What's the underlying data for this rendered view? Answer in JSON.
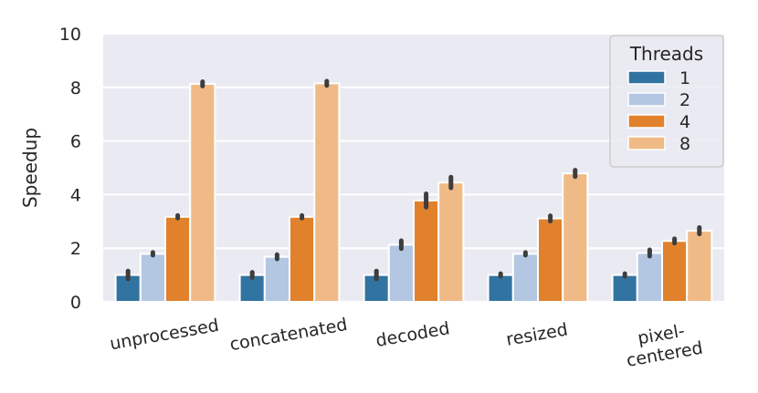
{
  "chart_data": {
    "type": "bar",
    "title": "",
    "xlabel": "",
    "ylabel": "Speedup",
    "ylim": [
      0,
      10
    ],
    "yticks": [
      "0",
      "2",
      "4",
      "6",
      "8",
      "10"
    ],
    "grid": true,
    "categories": [
      "unprocessed",
      "concatenated",
      "decoded",
      "resized",
      "pixel-\ncentered"
    ],
    "legend": {
      "title": "Threads",
      "placement": "top-right"
    },
    "series": [
      {
        "name": "1",
        "color": "#3274a1",
        "values": [
          1.0,
          1.0,
          1.0,
          1.0,
          1.0
        ],
        "err": [
          0.15,
          0.1,
          0.15,
          0.05,
          0.05
        ]
      },
      {
        "name": "2",
        "color": "#b3c7e2",
        "values": [
          1.79,
          1.68,
          2.13,
          1.79,
          1.82
        ],
        "err": [
          0.05,
          0.08,
          0.15,
          0.05,
          0.12
        ]
      },
      {
        "name": "4",
        "color": "#e1812c",
        "values": [
          3.17,
          3.17,
          3.78,
          3.11,
          2.27
        ],
        "err": [
          0.05,
          0.05,
          0.25,
          0.1,
          0.08
        ]
      },
      {
        "name": "8",
        "color": "#f0ba87",
        "values": [
          8.13,
          8.15,
          4.45,
          4.79,
          2.65
        ],
        "err": [
          0.08,
          0.08,
          0.2,
          0.12,
          0.12
        ]
      }
    ]
  }
}
